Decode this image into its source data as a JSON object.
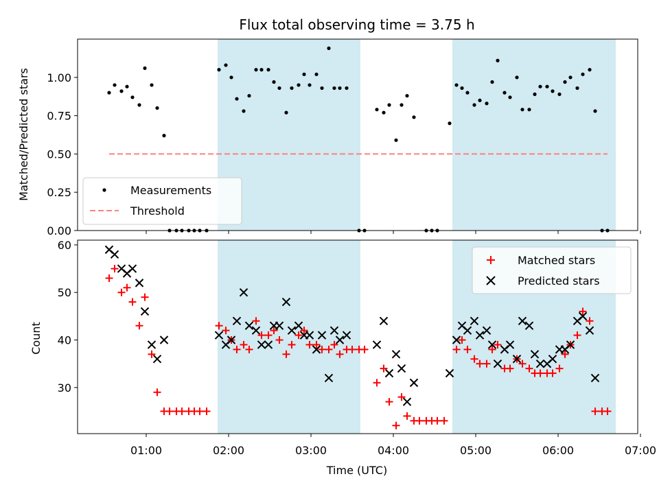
{
  "title": "Flux total observing time = 3.75 h",
  "colors": {
    "measurement": "#000000",
    "threshold": "#ff7f7f",
    "matched": "#ff0000",
    "predicted": "#000000",
    "shade": "#add8e6"
  },
  "chart_data": [
    {
      "type": "scatter",
      "ylabel": "Matched/Predicted stars",
      "ylim": [
        0,
        1.25
      ],
      "yticks": [
        0.0,
        0.25,
        0.5,
        0.75,
        1.0
      ],
      "ytick_labels": [
        "0.00",
        "0.25",
        "0.50",
        "0.75",
        "1.00"
      ],
      "grid": false,
      "legend_position": "lower-left",
      "shaded_intervals": [
        [
          "01:52",
          "03:36"
        ],
        [
          "04:43",
          "06:42"
        ]
      ],
      "series": [
        {
          "name": "Measurements",
          "marker": "dot",
          "points": [
            [
              "00:33",
              0.9
            ],
            [
              "00:37",
              0.95
            ],
            [
              "00:42",
              0.91
            ],
            [
              "00:46",
              0.94
            ],
            [
              "00:50",
              0.87
            ],
            [
              "00:55",
              0.82
            ],
            [
              "00:59",
              1.06
            ],
            [
              "01:04",
              0.95
            ],
            [
              "01:08",
              0.8
            ],
            [
              "01:13",
              0.62
            ],
            [
              "01:17",
              0
            ],
            [
              "01:22",
              0
            ],
            [
              "01:26",
              0
            ],
            [
              "01:31",
              0
            ],
            [
              "01:35",
              0
            ],
            [
              "01:39",
              0
            ],
            [
              "01:44",
              0
            ],
            [
              "01:53",
              1.05
            ],
            [
              "01:58",
              1.08
            ],
            [
              "02:02",
              1.0
            ],
            [
              "02:06",
              0.86
            ],
            [
              "02:11",
              0.78
            ],
            [
              "02:15",
              0.88
            ],
            [
              "02:20",
              1.05
            ],
            [
              "02:24",
              1.05
            ],
            [
              "02:29",
              1.05
            ],
            [
              "02:33",
              0.97
            ],
            [
              "02:37",
              0.93
            ],
            [
              "02:42",
              0.77
            ],
            [
              "02:46",
              0.93
            ],
            [
              "02:51",
              0.95
            ],
            [
              "02:55",
              1.02
            ],
            [
              "02:59",
              0.95
            ],
            [
              "03:04",
              1.02
            ],
            [
              "03:08",
              0.93
            ],
            [
              "03:13",
              1.19
            ],
            [
              "03:17",
              0.93
            ],
            [
              "03:21",
              0.93
            ],
            [
              "03:26",
              0.93
            ],
            [
              "03:35",
              0
            ],
            [
              "03:39",
              0
            ],
            [
              "03:48",
              0.79
            ],
            [
              "03:53",
              0.77
            ],
            [
              "03:57",
              0.82
            ],
            [
              "04:02",
              0.59
            ],
            [
              "04:06",
              0.82
            ],
            [
              "04:10",
              0.88
            ],
            [
              "04:15",
              0.74
            ],
            [
              "04:24",
              0
            ],
            [
              "04:28",
              0
            ],
            [
              "04:32",
              0
            ],
            [
              "04:41",
              0.7
            ],
            [
              "04:46",
              0.95
            ],
            [
              "04:50",
              0.93
            ],
            [
              "04:54",
              0.9
            ],
            [
              "04:59",
              0.82
            ],
            [
              "05:03",
              0.85
            ],
            [
              "05:08",
              0.83
            ],
            [
              "05:12",
              0.97
            ],
            [
              "05:16",
              1.11
            ],
            [
              "05:21",
              0.9
            ],
            [
              "05:25",
              0.87
            ],
            [
              "05:30",
              1.0
            ],
            [
              "05:34",
              0.79
            ],
            [
              "05:39",
              0.79
            ],
            [
              "05:43",
              0.89
            ],
            [
              "05:47",
              0.94
            ],
            [
              "05:52",
              0.94
            ],
            [
              "05:56",
              0.91
            ],
            [
              "06:01",
              0.89
            ],
            [
              "06:05",
              0.97
            ],
            [
              "06:09",
              1.0
            ],
            [
              "06:14",
              0.93
            ],
            [
              "06:18",
              1.02
            ],
            [
              "06:23",
              1.05
            ],
            [
              "06:27",
              0.78
            ],
            [
              "06:32",
              0
            ],
            [
              "06:36",
              0
            ]
          ]
        },
        {
          "name": "Threshold",
          "marker": "dashed-line",
          "points": [
            [
              "00:33",
              0.5
            ],
            [
              "06:36",
              0.5
            ]
          ]
        }
      ]
    },
    {
      "type": "scatter",
      "xlabel": "Time (UTC)",
      "ylabel": "Count",
      "ylim": [
        20.3,
        61.0
      ],
      "yticks": [
        30,
        40,
        50,
        60
      ],
      "ytick_labels": [
        "30",
        "40",
        "50",
        "60"
      ],
      "xlim": [
        "00:10",
        "06:58"
      ],
      "xticks": [
        "01:00",
        "02:00",
        "03:00",
        "04:00",
        "05:00",
        "06:00",
        "07:00"
      ],
      "xtick_labels": [
        "01:00",
        "02:00",
        "03:00",
        "04:00",
        "05:00",
        "06:00",
        "07:00"
      ],
      "grid": false,
      "legend_position": "upper-right",
      "shaded_intervals": [
        [
          "01:52",
          "03:36"
        ],
        [
          "04:43",
          "06:42"
        ]
      ],
      "series": [
        {
          "name": "Matched stars",
          "marker": "plus",
          "points": [
            [
              "00:33",
              53
            ],
            [
              "00:37",
              55
            ],
            [
              "00:42",
              50
            ],
            [
              "00:46",
              51
            ],
            [
              "00:50",
              48
            ],
            [
              "00:55",
              43
            ],
            [
              "00:59",
              49
            ],
            [
              "01:04",
              37
            ],
            [
              "01:08",
              29
            ],
            [
              "01:13",
              25
            ],
            [
              "01:17",
              25
            ],
            [
              "01:22",
              25
            ],
            [
              "01:26",
              25
            ],
            [
              "01:31",
              25
            ],
            [
              "01:35",
              25
            ],
            [
              "01:39",
              25
            ],
            [
              "01:44",
              25
            ],
            [
              "01:53",
              43
            ],
            [
              "01:58",
              42
            ],
            [
              "02:02",
              40
            ],
            [
              "02:06",
              38
            ],
            [
              "02:11",
              39
            ],
            [
              "02:15",
              38
            ],
            [
              "02:20",
              44
            ],
            [
              "02:24",
              41
            ],
            [
              "02:29",
              41
            ],
            [
              "02:33",
              42
            ],
            [
              "02:37",
              40
            ],
            [
              "02:42",
              37
            ],
            [
              "02:46",
              39
            ],
            [
              "02:51",
              41
            ],
            [
              "02:55",
              42
            ],
            [
              "02:59",
              39
            ],
            [
              "03:04",
              39
            ],
            [
              "03:08",
              38
            ],
            [
              "03:13",
              38
            ],
            [
              "03:17",
              39
            ],
            [
              "03:21",
              37
            ],
            [
              "03:26",
              38
            ],
            [
              "03:30",
              38
            ],
            [
              "03:35",
              38
            ],
            [
              "03:39",
              38
            ],
            [
              "03:48",
              31
            ],
            [
              "03:53",
              34
            ],
            [
              "03:57",
              27
            ],
            [
              "04:02",
              22
            ],
            [
              "04:06",
              28
            ],
            [
              "04:10",
              24
            ],
            [
              "04:15",
              23
            ],
            [
              "04:19",
              23
            ],
            [
              "04:24",
              23
            ],
            [
              "04:28",
              23
            ],
            [
              "04:32",
              23
            ],
            [
              "04:37",
              23
            ],
            [
              "04:46",
              38
            ],
            [
              "04:50",
              40
            ],
            [
              "04:54",
              38
            ],
            [
              "04:59",
              36
            ],
            [
              "05:03",
              35
            ],
            [
              "05:08",
              35
            ],
            [
              "05:12",
              38
            ],
            [
              "05:16",
              39
            ],
            [
              "05:21",
              34
            ],
            [
              "05:25",
              34
            ],
            [
              "05:30",
              36
            ],
            [
              "05:34",
              35
            ],
            [
              "05:39",
              34
            ],
            [
              "05:43",
              33
            ],
            [
              "05:47",
              33
            ],
            [
              "05:52",
              33
            ],
            [
              "05:56",
              33
            ],
            [
              "06:01",
              34
            ],
            [
              "06:05",
              37
            ],
            [
              "06:09",
              39
            ],
            [
              "06:14",
              41
            ],
            [
              "06:18",
              46
            ],
            [
              "06:23",
              44
            ],
            [
              "06:27",
              25
            ],
            [
              "06:32",
              25
            ],
            [
              "06:36",
              25
            ]
          ]
        },
        {
          "name": "Predicted stars",
          "marker": "x",
          "points": [
            [
              "00:33",
              59
            ],
            [
              "00:37",
              58
            ],
            [
              "00:42",
              55
            ],
            [
              "00:46",
              54
            ],
            [
              "00:50",
              55
            ],
            [
              "00:55",
              52
            ],
            [
              "00:59",
              46
            ],
            [
              "01:04",
              39
            ],
            [
              "01:08",
              36
            ],
            [
              "01:13",
              40
            ],
            [
              "01:53",
              41
            ],
            [
              "01:58",
              39
            ],
            [
              "02:02",
              40
            ],
            [
              "02:06",
              44
            ],
            [
              "02:11",
              50
            ],
            [
              "02:15",
              43
            ],
            [
              "02:20",
              42
            ],
            [
              "02:24",
              39
            ],
            [
              "02:29",
              39
            ],
            [
              "02:33",
              43
            ],
            [
              "02:37",
              43
            ],
            [
              "02:42",
              48
            ],
            [
              "02:46",
              42
            ],
            [
              "02:51",
              43
            ],
            [
              "02:55",
              41
            ],
            [
              "02:59",
              41
            ],
            [
              "03:04",
              38
            ],
            [
              "03:08",
              41
            ],
            [
              "03:13",
              32
            ],
            [
              "03:17",
              42
            ],
            [
              "03:21",
              40
            ],
            [
              "03:26",
              41
            ],
            [
              "03:48",
              39
            ],
            [
              "03:53",
              44
            ],
            [
              "03:57",
              33
            ],
            [
              "04:02",
              37
            ],
            [
              "04:06",
              34
            ],
            [
              "04:10",
              27
            ],
            [
              "04:15",
              31
            ],
            [
              "04:41",
              33
            ],
            [
              "04:46",
              40
            ],
            [
              "04:50",
              43
            ],
            [
              "04:54",
              42
            ],
            [
              "04:59",
              44
            ],
            [
              "05:03",
              41
            ],
            [
              "05:08",
              42
            ],
            [
              "05:12",
              39
            ],
            [
              "05:16",
              35
            ],
            [
              "05:21",
              38
            ],
            [
              "05:25",
              39
            ],
            [
              "05:30",
              36
            ],
            [
              "05:34",
              44
            ],
            [
              "05:39",
              43
            ],
            [
              "05:43",
              37
            ],
            [
              "05:47",
              35
            ],
            [
              "05:52",
              35
            ],
            [
              "05:56",
              36
            ],
            [
              "06:01",
              38
            ],
            [
              "06:05",
              38
            ],
            [
              "06:09",
              39
            ],
            [
              "06:14",
              44
            ],
            [
              "06:18",
              45
            ],
            [
              "06:23",
              42
            ],
            [
              "06:27",
              32
            ]
          ]
        }
      ]
    }
  ]
}
